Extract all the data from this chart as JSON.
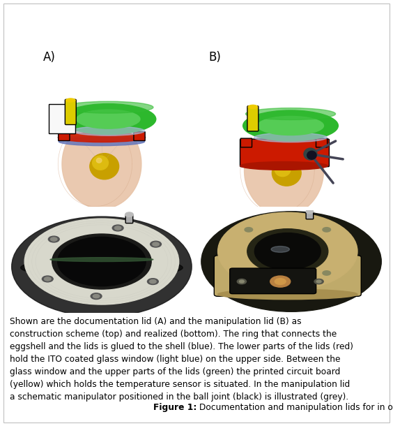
{
  "bg_color": "#ffffff",
  "border_color": "#c0c0c0",
  "label_A": "A)",
  "label_B": "B)",
  "caption_body_lines": [
    "Shown are the documentation lid (A) and the manipulation lid (B) as",
    "construction scheme (top) and realized (bottom). The ring that connects the",
    "eggshell and the lids is glued to the shell (blue). The lower parts of the lids (red)",
    "hold the ITO coated glass window (light blue) on the upper side. Between the",
    "glass window and the upper parts of the lids (green) the printed circuit board",
    "(yellow) which holds the temperature sensor is situated. In the manipulation lid",
    "a schematic manipulator positioned in the ball joint (black) is illustrated (grey)."
  ],
  "caption_figure_bold": "Figure 1:",
  "caption_figure_rest": " Documentation and manipulation lids for in ovo cultures.",
  "label_fontsize": 12,
  "caption_fontsize": 8.8,
  "figure_label_fontsize": 8.8,
  "img_bg": "#f8f8f8",
  "photo_bg": "#0d0d0d",
  "green_color": "#2db82d",
  "green_light": "#44dd44",
  "red_color": "#cc1a00",
  "yellow_color": "#ddcc00",
  "blue_color": "#8899cc",
  "blue_light": "#aabbdd",
  "skin_color": "#e8c4a8",
  "skin_dark": "#d4a888",
  "yolk_color": "#c8a000",
  "yolk_light": "#ddbb10",
  "white_lid": "#e8e8e0",
  "cream_lid": "#c8b878",
  "grey_manip": "#555566"
}
